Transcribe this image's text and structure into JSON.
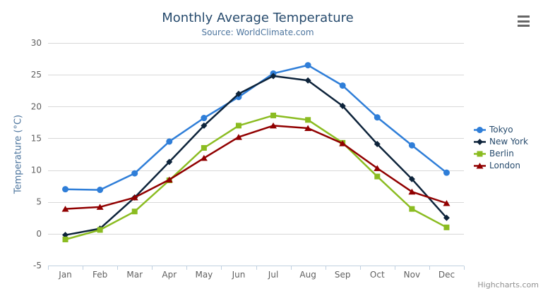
{
  "credits": "Highcharts.com",
  "icons": {
    "menu": "hamburger-icon"
  },
  "colors": {
    "title": "#274b6d",
    "subtitle": "#4d759e",
    "axis_title": "#4d759e",
    "axis_labels": "#606060",
    "gridline": "#d8d8d8",
    "axis_line": "#c0d0e0",
    "legend_text": "#274b6d",
    "credits": "#909090",
    "menu_icon": "#666666",
    "background": "#ffffff"
  },
  "chart_data": {
    "type": "line",
    "title": "Monthly Average Temperature",
    "subtitle": "Source: WorldClimate.com",
    "xlabel": "",
    "ylabel": "Temperature (°C)",
    "ylim": [
      -5,
      30
    ],
    "y_tick_interval": 5,
    "grid": true,
    "legend_position": "right-middle-vertical",
    "categories": [
      "Jan",
      "Feb",
      "Mar",
      "Apr",
      "May",
      "Jun",
      "Jul",
      "Aug",
      "Sep",
      "Oct",
      "Nov",
      "Dec"
    ],
    "series": [
      {
        "name": "Tokyo",
        "color": "#2f7ed8",
        "marker": "circle",
        "values": [
          7.0,
          6.9,
          9.5,
          14.5,
          18.2,
          21.5,
          25.2,
          26.5,
          23.3,
          18.3,
          13.9,
          9.6
        ]
      },
      {
        "name": "New York",
        "color": "#0d233a",
        "marker": "diamond",
        "values": [
          -0.2,
          0.8,
          5.7,
          11.3,
          17.0,
          22.0,
          24.8,
          24.1,
          20.1,
          14.1,
          8.6,
          2.5
        ]
      },
      {
        "name": "Berlin",
        "color": "#8bbc21",
        "marker": "square",
        "values": [
          -0.9,
          0.6,
          3.5,
          8.4,
          13.5,
          17.0,
          18.6,
          17.9,
          14.3,
          9.0,
          3.9,
          1.0
        ]
      },
      {
        "name": "London",
        "color": "#910000",
        "marker": "triangle",
        "values": [
          3.9,
          4.2,
          5.7,
          8.5,
          11.9,
          15.2,
          17.0,
          16.6,
          14.2,
          10.3,
          6.6,
          4.8
        ]
      }
    ]
  }
}
